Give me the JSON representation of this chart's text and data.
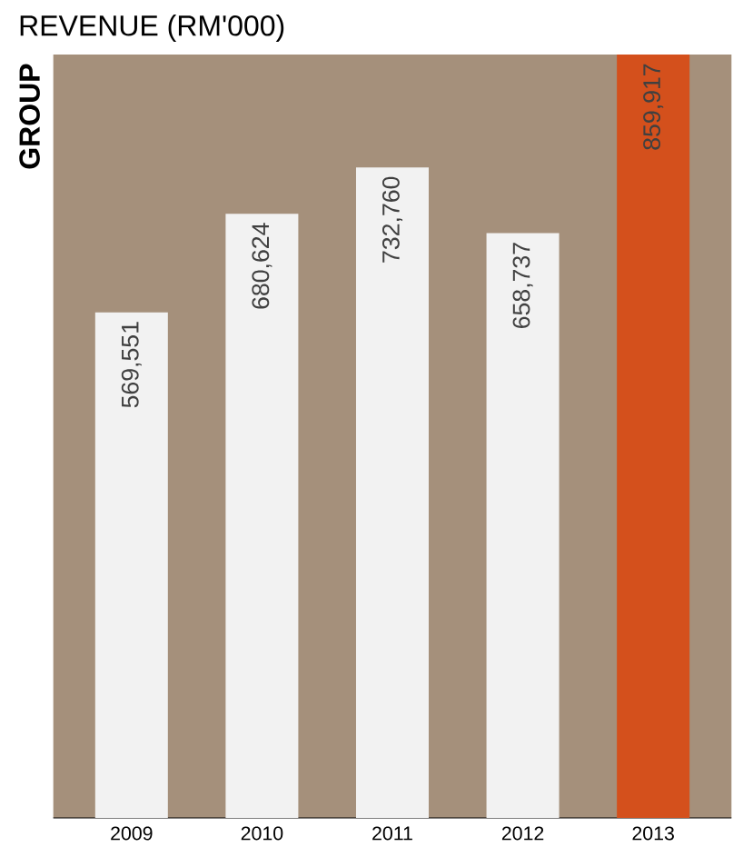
{
  "chart_data": {
    "type": "bar",
    "title": "REVENUE (RM'000)",
    "ylabel": "GROUP",
    "categories": [
      "2009",
      "2010",
      "2011",
      "2012",
      "2013"
    ],
    "values": [
      569551,
      680624,
      732760,
      658737,
      859917
    ],
    "value_labels": [
      "569,551",
      "680,624",
      "732,760",
      "658,737",
      "859,917"
    ],
    "colors": [
      "#f2f2f2",
      "#f2f2f2",
      "#f2f2f2",
      "#f2f2f2",
      "#d4501c"
    ]
  }
}
